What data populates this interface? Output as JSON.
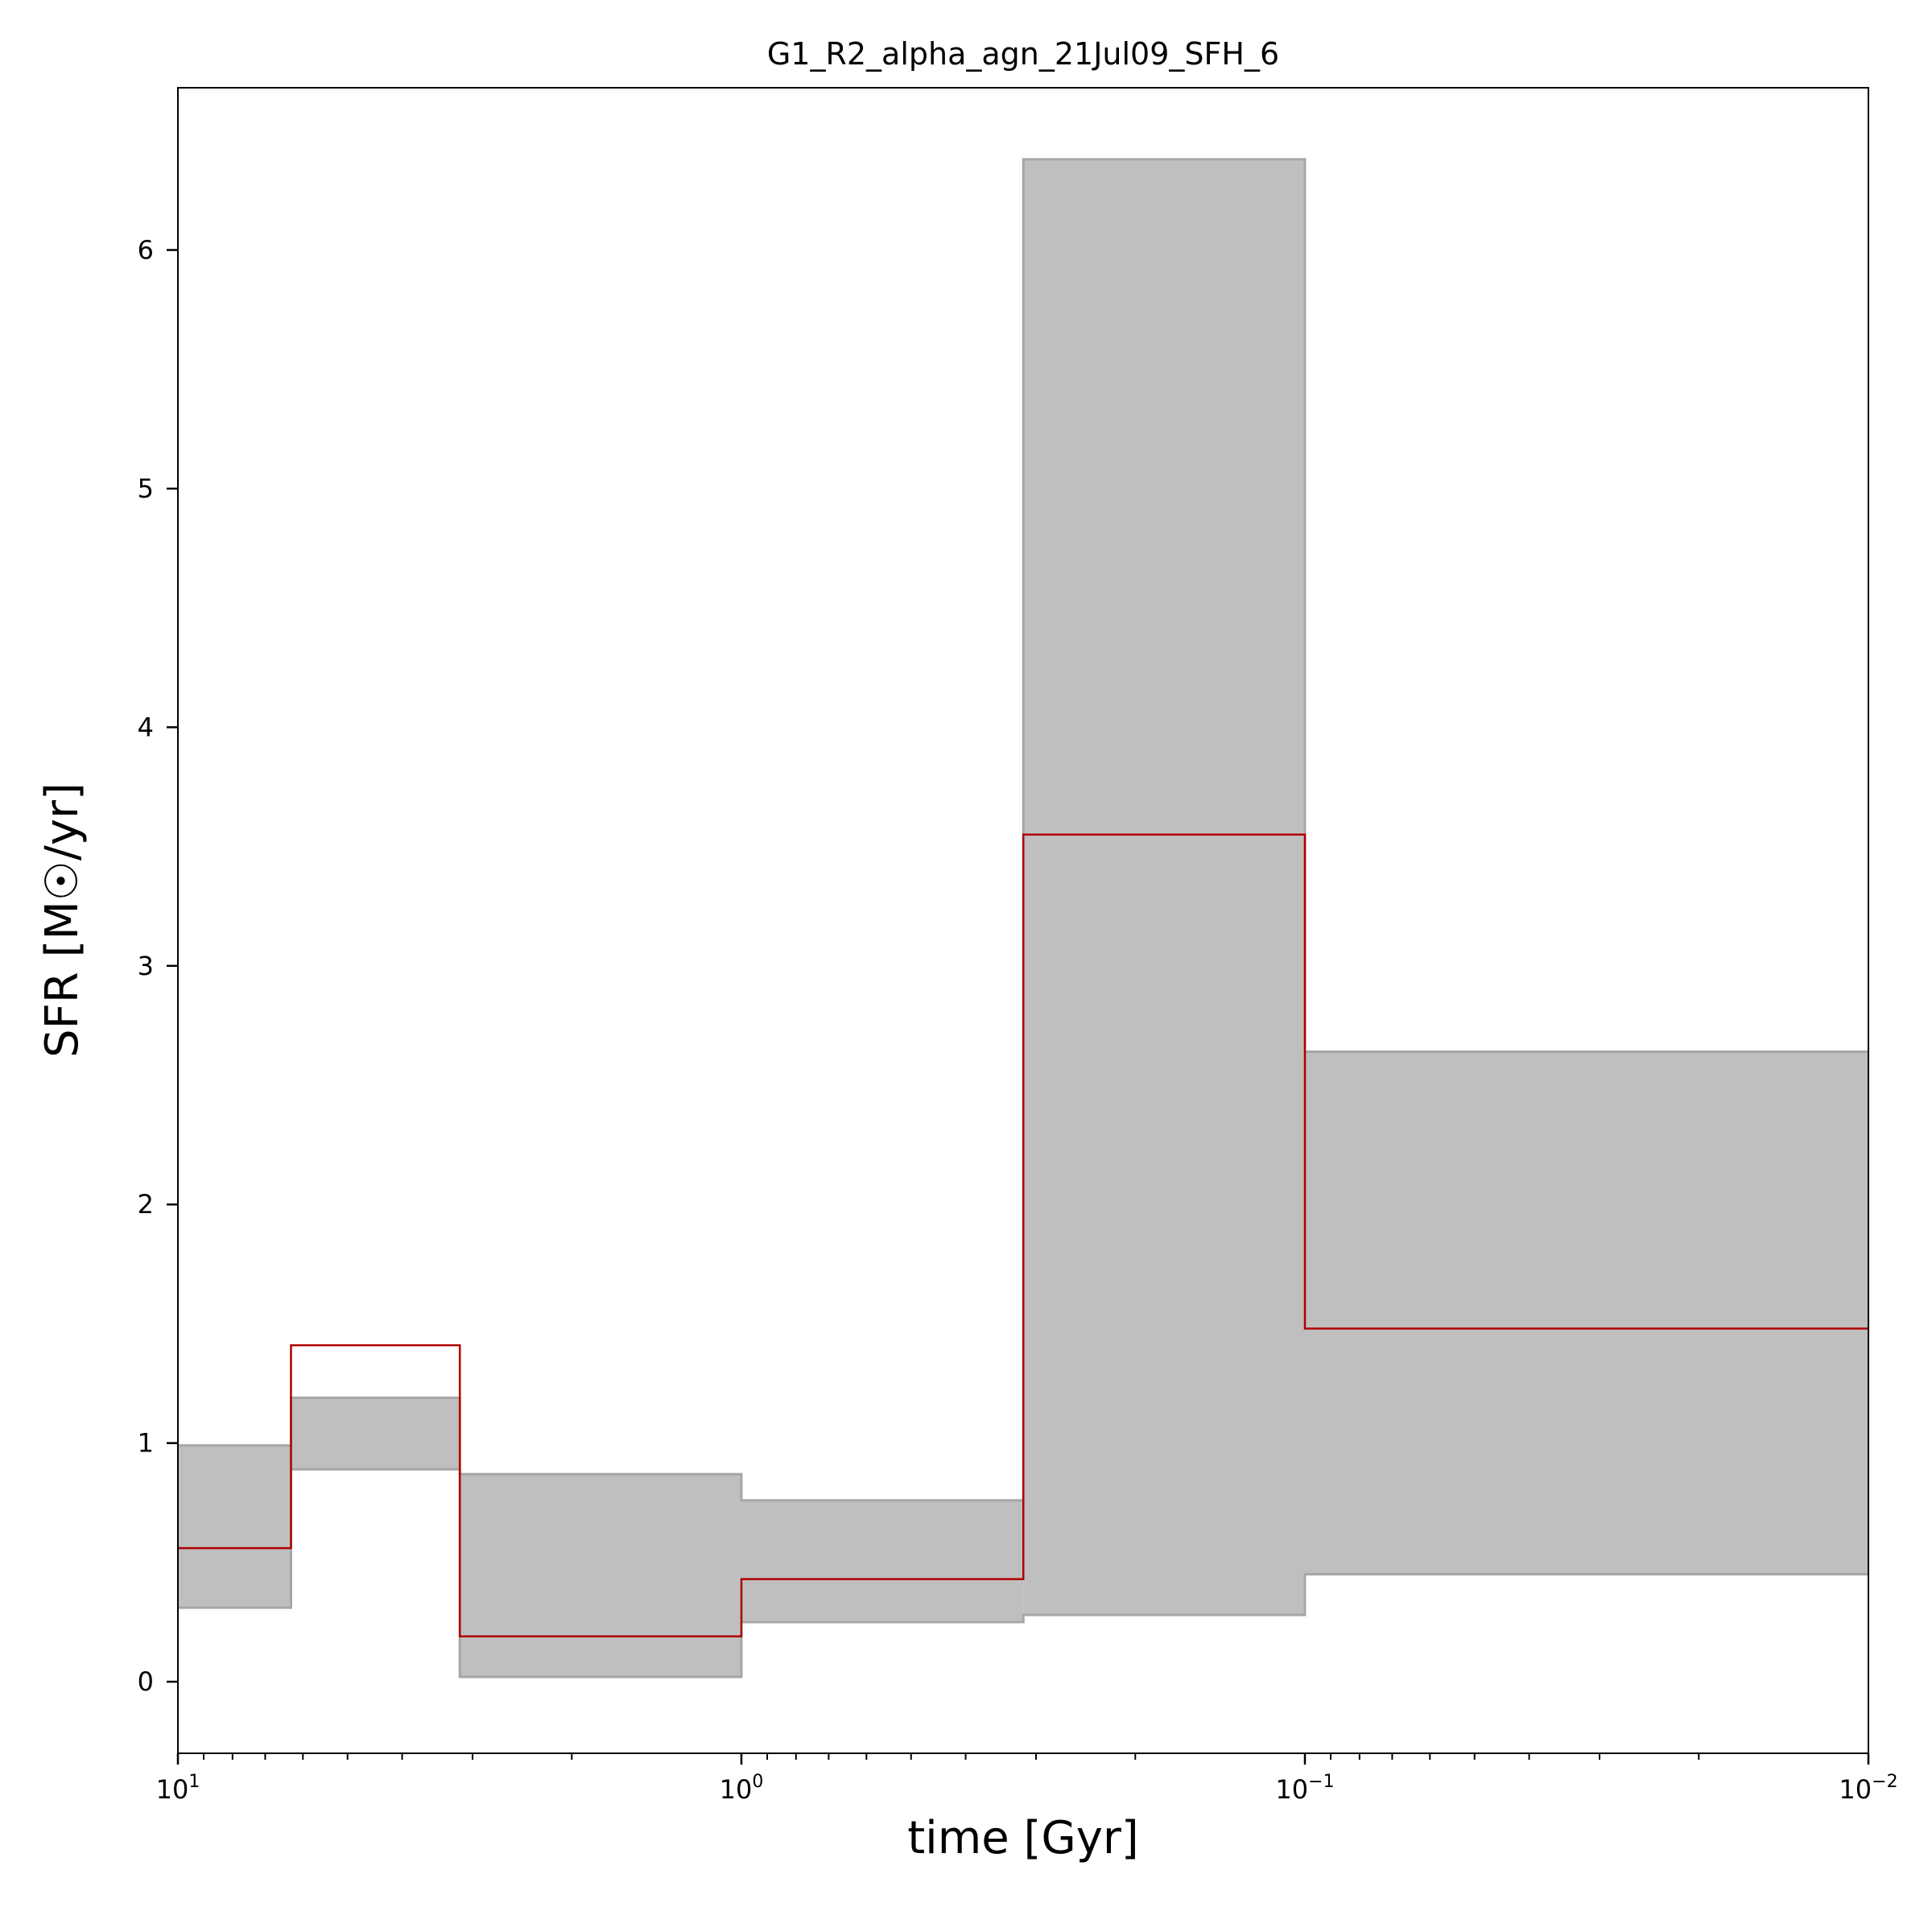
{
  "chart_data": {
    "type": "area",
    "title": "G1_R2_alpha_agn_21Jul09_SFH_6",
    "xlabel": "time [Gyr]",
    "ylabel": "SFR [M☉/yr]",
    "xscale": "log",
    "x_inverted": true,
    "xlim": [
      10,
      0.01
    ],
    "ylim": [
      -0.3,
      6.68
    ],
    "grid": false,
    "y_ticks": [
      "0",
      "1",
      "2",
      "3",
      "4",
      "5",
      "6"
    ],
    "x_ticks": [
      {
        "base": "10",
        "exp": "1"
      },
      {
        "base": "10",
        "exp": "0"
      },
      {
        "base": "10",
        "exp": "−1"
      },
      {
        "base": "10",
        "exp": "−2"
      }
    ],
    "colors": {
      "band_fill": "#bfbfbf",
      "band_edge": "#a6a6a6",
      "median": "#b00000"
    },
    "bins": [
      {
        "x_start": 10,
        "x_end": 6.3,
        "low": 0.31,
        "high": 0.99,
        "median": 0.56
      },
      {
        "x_start": 6.3,
        "x_end": 3.16,
        "low": 0.89,
        "high": 1.19,
        "median": 1.41
      },
      {
        "x_start": 3.16,
        "x_end": 1.0,
        "low": 0.02,
        "high": 0.87,
        "median": 0.19
      },
      {
        "x_start": 1.0,
        "x_end": 0.316,
        "low": 0.25,
        "high": 0.76,
        "median": 0.43
      },
      {
        "x_start": 0.316,
        "x_end": 0.1,
        "low": 0.28,
        "high": 6.38,
        "median": 3.55
      },
      {
        "x_start": 0.1,
        "x_end": 0.01,
        "low": 0.45,
        "high": 2.64,
        "median": 1.48
      }
    ]
  }
}
